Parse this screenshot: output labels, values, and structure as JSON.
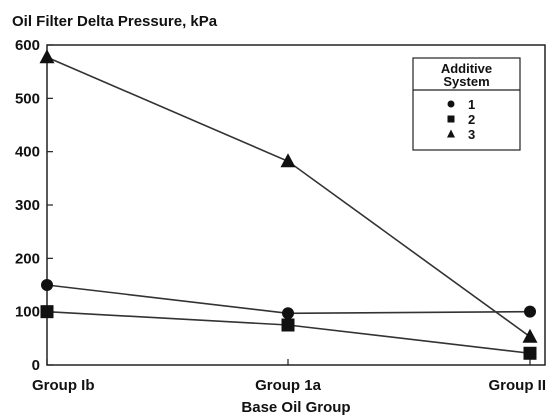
{
  "chart_data": {
    "type": "line",
    "title": "Oil Filter Delta Pressure, kPa",
    "xlabel": "Base Oil Group",
    "ylabel": "",
    "categories": [
      "Group Ib",
      "Group 1a",
      "Group II"
    ],
    "ylim": [
      0,
      600
    ],
    "yticks": [
      0,
      100,
      200,
      300,
      400,
      500,
      600
    ],
    "grid": false,
    "legend": {
      "title": "Additive System",
      "title_lines": [
        "Additive",
        "System"
      ],
      "placement": "top-right"
    },
    "series": [
      {
        "name": "1",
        "marker": "circle",
        "values": [
          150,
          97,
          100
        ]
      },
      {
        "name": "2",
        "marker": "square",
        "values": [
          100,
          75,
          22
        ]
      },
      {
        "name": "3",
        "marker": "triangle",
        "values": [
          577,
          382,
          53
        ]
      }
    ],
    "colors": {
      "line": "#333333",
      "marker": "#111111",
      "axis": "#222222"
    }
  }
}
